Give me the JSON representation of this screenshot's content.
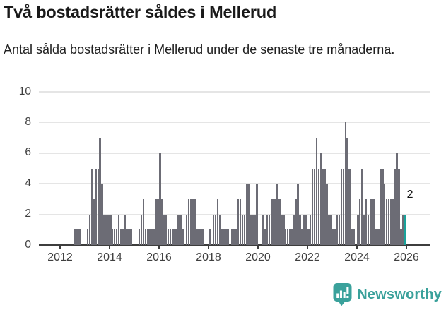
{
  "header": {
    "title": "Två bostadsrätter såldes i Mellerud",
    "subtitle": "Antal sålda bostadsrätter i Mellerud under de senaste tre månaderna."
  },
  "chart_data": {
    "type": "bar",
    "title": "Två bostadsrätter såldes i Mellerud",
    "xlabel": "",
    "ylabel": "",
    "ylim": [
      0,
      10
    ],
    "y_ticks": [
      0,
      2,
      4,
      6,
      8,
      10
    ],
    "x_ticks": [
      2012,
      2014,
      2016,
      2018,
      2020,
      2022,
      2024,
      2026
    ],
    "grid": true,
    "legend": false,
    "start_year": 2012,
    "months_per_year": 12,
    "values_monthly_by_year": {
      "2012": [
        0,
        0,
        0,
        0,
        0,
        0,
        0,
        1,
        1,
        1,
        0,
        0
      ],
      "2013": [
        0,
        1,
        2,
        5,
        3,
        5,
        5,
        7,
        4,
        2,
        2,
        2
      ],
      "2014": [
        2,
        1,
        1,
        1,
        2,
        1,
        1,
        2,
        1,
        1,
        1,
        0
      ],
      "2015": [
        0,
        0,
        1,
        2,
        3,
        1,
        1,
        1,
        1,
        1,
        3,
        3
      ],
      "2016": [
        6,
        3,
        2,
        2,
        1,
        1,
        1,
        1,
        1,
        2,
        2,
        1
      ],
      "2017": [
        0,
        2,
        3,
        3,
        3,
        3,
        1,
        1,
        1,
        1,
        0,
        0
      ],
      "2018": [
        1,
        0,
        2,
        2,
        3,
        2,
        1,
        1,
        1,
        1,
        0,
        1
      ],
      "2019": [
        1,
        1,
        3,
        3,
        2,
        2,
        4,
        4,
        2,
        2,
        2,
        4
      ],
      "2020": [
        0,
        0,
        2,
        1,
        2,
        2,
        3,
        3,
        3,
        4,
        3,
        2
      ],
      "2021": [
        2,
        1,
        1,
        1,
        1,
        2,
        3,
        4,
        2,
        1,
        2,
        2
      ],
      "2022": [
        1,
        2,
        5,
        5,
        7,
        5,
        6,
        5,
        5,
        4,
        2,
        2
      ],
      "2023": [
        1,
        1,
        2,
        2,
        5,
        5,
        8,
        7,
        5,
        1,
        1,
        0
      ],
      "2024": [
        2,
        3,
        5,
        2,
        3,
        2,
        3,
        3,
        3,
        1,
        1,
        5
      ],
      "2025": [
        5,
        4,
        3,
        3,
        3,
        3,
        5,
        6,
        5,
        1,
        2,
        2
      ]
    },
    "highlight_last": {
      "label": "2",
      "value": 2
    },
    "colors": {
      "bar": "#6c6c75",
      "highlight": "#19a29a",
      "grid": "#e5e5e5",
      "axis": "#3d3d3d",
      "tick_text": "#3f3f3f"
    }
  },
  "footer": {
    "brand": "Newsworthy",
    "brand_color": "#3aa19b"
  }
}
